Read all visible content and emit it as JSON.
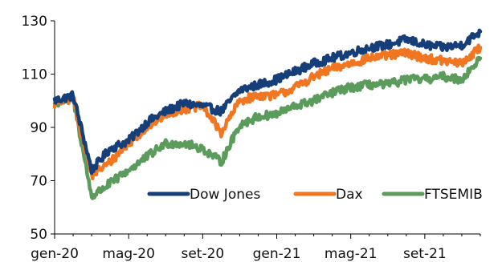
{
  "chart_data": {
    "type": "line",
    "title": "",
    "xlabel": "",
    "ylabel": "",
    "ylim": [
      50,
      130
    ],
    "y_ticks": [
      "50",
      "70",
      "90",
      "110",
      "130"
    ],
    "x_ticks": [
      "gen-20",
      "mag-20",
      "set-20",
      "gen-21",
      "mag-21",
      "set-21"
    ],
    "grid": false,
    "legend_position": "bottom-right",
    "x": [
      "2020-01",
      "2020-02",
      "2020-03",
      "2020-04",
      "2020-05",
      "2020-06",
      "2020-07",
      "2020-08",
      "2020-09",
      "2020-10",
      "2020-11",
      "2020-12",
      "2021-01",
      "2021-02",
      "2021-03",
      "2021-04",
      "2021-05",
      "2021-06",
      "2021-07",
      "2021-08",
      "2021-09",
      "2021-10",
      "2021-11",
      "2021-12"
    ],
    "series": [
      {
        "name": "Dow Jones",
        "color": "#163F7A",
        "values": [
          100,
          102,
          74,
          82,
          85,
          92,
          96,
          99,
          98,
          96,
          104,
          106,
          108,
          111,
          114,
          116,
          118,
          120,
          121,
          123,
          121,
          120,
          121,
          126
        ]
      },
      {
        "name": "Dax",
        "color": "#F07622",
        "values": [
          99,
          101,
          72,
          77,
          84,
          90,
          95,
          97,
          98,
          88,
          100,
          102,
          102,
          105,
          109,
          112,
          114,
          116,
          117,
          118,
          116,
          115,
          114,
          120
        ]
      },
      {
        "name": "FTSEMIB",
        "color": "#5B9B5B",
        "values": [
          99,
          101,
          64,
          69,
          74,
          79,
          84,
          84,
          82,
          77,
          91,
          94,
          95,
          98,
          100,
          103,
          105,
          106,
          106,
          108,
          108,
          109,
          108,
          116
        ]
      }
    ]
  }
}
